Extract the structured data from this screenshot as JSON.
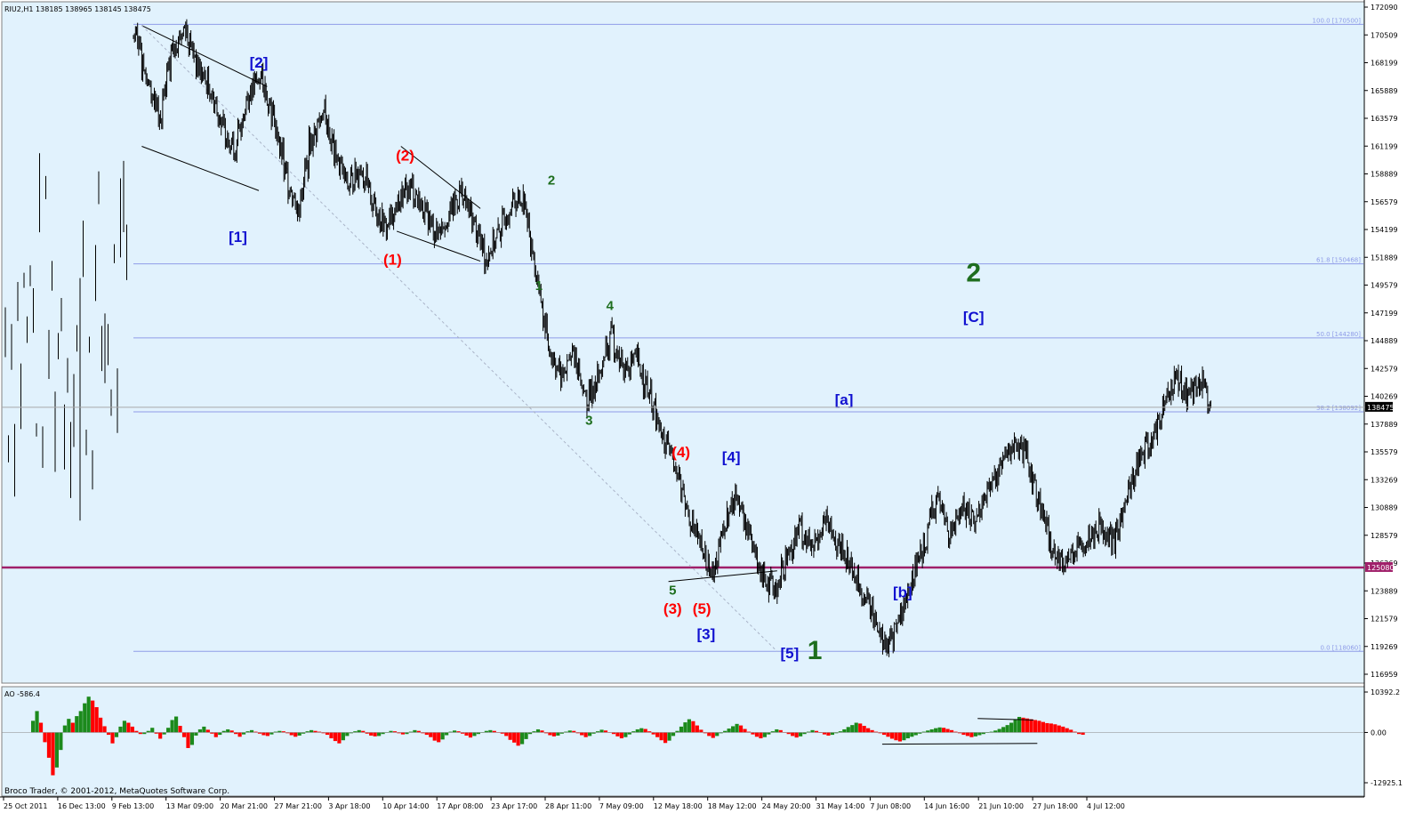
{
  "header": {
    "symbol_ohlc": "RIU2,H1  138185 138965 138145 138475",
    "osc_label": "AO -586.4",
    "copyright": "Broco Trader, © 2001-2012, MetaQuotes Software Corp."
  },
  "colors": {
    "background": "#e1f2fd",
    "grid": "#c0c0c0",
    "candle": "#000000",
    "fib_line": "#8f9ce8",
    "support_line": "#a0206a",
    "ao_up": "#1c8a1c",
    "ao_down": "#ff0000",
    "label_blue": "#1010d0",
    "label_red": "#ff0000",
    "label_green": "#1e6e1e",
    "price_box": "#000000"
  },
  "chart_data": [
    {
      "type": "candlestick",
      "symbol": "RIU2",
      "timeframe": "H1",
      "ylim": [
        116000,
        172090
      ],
      "y_ticks": [
        "172090",
        "170509",
        "168199",
        "165889",
        "163579",
        "161199",
        "158889",
        "156579",
        "154199",
        "151889",
        "149579",
        "147199",
        "144889",
        "142579",
        "140269",
        "137889",
        "135579",
        "133269",
        "130889",
        "128579",
        "126269",
        "123889",
        "121579",
        "119269",
        "116959"
      ],
      "x_ticks": [
        "25 Oct 2011",
        "16 Dec 13:00",
        "9 Feb 13:00",
        "13 Mar 09:00",
        "20 Mar 21:00",
        "27 Mar 21:00",
        "3 Apr 18:00",
        "10 Apr 14:00",
        "17 Apr 08:00",
        "23 Apr 17:00",
        "28 Apr 11:00",
        "7 May 09:00",
        "12 May 18:00",
        "18 May 12:00",
        "24 May 20:00",
        "31 May 14:00",
        "7 Jun 08:00",
        "14 Jun 16:00",
        "21 Jun 10:00",
        "27 Jun 18:00",
        "4 Jul 12:00"
      ],
      "path_points": [
        [
          0,
          169500
        ],
        [
          3,
          166000
        ],
        [
          6,
          162500
        ],
        [
          9,
          168500
        ],
        [
          12,
          170200
        ],
        [
          15,
          167000
        ],
        [
          18,
          165000
        ],
        [
          21,
          162000
        ],
        [
          24,
          160000
        ],
        [
          27,
          164500
        ],
        [
          30,
          166200
        ],
        [
          33,
          163000
        ],
        [
          36,
          158000
        ],
        [
          39,
          155000
        ],
        [
          42,
          160500
        ],
        [
          45,
          163200
        ],
        [
          48,
          159500
        ],
        [
          51,
          157000
        ],
        [
          54,
          158500
        ],
        [
          57,
          155500
        ],
        [
          60,
          153500
        ],
        [
          63,
          155500
        ],
        [
          66,
          157000
        ],
        [
          69,
          155000
        ],
        [
          72,
          153000
        ],
        [
          75,
          154500
        ],
        [
          78,
          156500
        ],
        [
          81,
          154000
        ],
        [
          84,
          151000
        ],
        [
          87,
          153000
        ],
        [
          90,
          155500
        ],
        [
          93,
          156000
        ],
        [
          96,
          149500
        ],
        [
          99,
          143500
        ],
        [
          102,
          141000
        ],
        [
          105,
          143000
        ],
        [
          108,
          139000
        ],
        [
          111,
          141000
        ],
        [
          114,
          144500
        ],
        [
          117,
          141500
        ],
        [
          120,
          142500
        ],
        [
          123,
          139500
        ],
        [
          126,
          136000
        ],
        [
          129,
          134000
        ],
        [
          132,
          130000
        ],
        [
          135,
          127000
        ],
        [
          138,
          124500
        ],
        [
          141,
          128500
        ],
        [
          144,
          131200
        ],
        [
          147,
          127500
        ],
        [
          150,
          124800
        ],
        [
          153,
          123000
        ],
        [
          156,
          126000
        ],
        [
          159,
          128500
        ],
        [
          162,
          126500
        ],
        [
          165,
          129000
        ],
        [
          168,
          127000
        ],
        [
          171,
          125500
        ],
        [
          174,
          123000
        ],
        [
          177,
          121000
        ],
        [
          180,
          118300
        ],
        [
          183,
          121000
        ],
        [
          186,
          124000
        ],
        [
          189,
          127500
        ],
        [
          192,
          130800
        ],
        [
          195,
          128000
        ],
        [
          198,
          130200
        ],
        [
          201,
          129000
        ],
        [
          204,
          131500
        ],
        [
          207,
          133500
        ],
        [
          210,
          135200
        ],
        [
          213,
          134500
        ],
        [
          216,
          131000
        ],
        [
          219,
          127000
        ],
        [
          222,
          125500
        ],
        [
          225,
          126500
        ],
        [
          228,
          127500
        ],
        [
          231,
          128800
        ],
        [
          234,
          127200
        ],
        [
          237,
          130500
        ],
        [
          240,
          134000
        ],
        [
          243,
          135500
        ],
        [
          246,
          138500
        ],
        [
          249,
          141000
        ],
        [
          252,
          139500
        ],
        [
          255,
          140500
        ],
        [
          257,
          138475
        ]
      ],
      "fib_levels": [
        {
          "label": "100.0 [170500]",
          "value": 170500
        },
        {
          "label": "61.8 [150468]",
          "value": 150468
        },
        {
          "label": "50.0 [144280]",
          "value": 144280
        },
        {
          "label": "38.2 [138092]",
          "value": 138092
        },
        {
          "label": "0.0 [118060]",
          "value": 118060
        }
      ],
      "support_level": {
        "value": 125080,
        "label": "125080"
      },
      "current_price": {
        "value": 138475,
        "label": "138475"
      },
      "wave_labels": [
        {
          "text": "[2]",
          "color": "blue",
          "bar": 30,
          "price": 166900,
          "size": "m"
        },
        {
          "text": "[1]",
          "color": "blue",
          "bar": 25,
          "price": 152300,
          "size": "m"
        },
        {
          "text": "(2)",
          "color": "red",
          "bar": 65,
          "price": 159100,
          "size": "m"
        },
        {
          "text": "(1)",
          "color": "red",
          "bar": 62,
          "price": 150400,
          "size": "m"
        },
        {
          "text": "2",
          "color": "green",
          "bar": 100,
          "price": 157100,
          "size": "s"
        },
        {
          "text": "1",
          "color": "green",
          "bar": 97,
          "price": 148300,
          "size": "s"
        },
        {
          "text": "4",
          "color": "green",
          "bar": 114,
          "price": 146600,
          "size": "s"
        },
        {
          "text": "3",
          "color": "green",
          "bar": 109,
          "price": 137000,
          "size": "s"
        },
        {
          "text": "(4)",
          "color": "red",
          "bar": 131,
          "price": 134300,
          "size": "m"
        },
        {
          "text": "[4]",
          "color": "blue",
          "bar": 143,
          "price": 133900,
          "size": "m"
        },
        {
          "text": "5",
          "color": "green",
          "bar": 129,
          "price": 122800,
          "size": "s"
        },
        {
          "text": "(3)",
          "color": "red",
          "bar": 129,
          "price": 121200,
          "size": "m"
        },
        {
          "text": "(5)",
          "color": "red",
          "bar": 136,
          "price": 121200,
          "size": "m"
        },
        {
          "text": "[3]",
          "color": "blue",
          "bar": 137,
          "price": 119100,
          "size": "m"
        },
        {
          "text": "[5]",
          "color": "blue",
          "bar": 157,
          "price": 117500,
          "size": "m"
        },
        {
          "text": "1",
          "color": "green",
          "bar": 163,
          "price": 117400,
          "size": "xl"
        },
        {
          "text": "[a]",
          "color": "blue",
          "bar": 170,
          "price": 138700,
          "size": "m"
        },
        {
          "text": "[b]",
          "color": "blue",
          "bar": 184,
          "price": 122600,
          "size": "m"
        },
        {
          "text": "2",
          "color": "green",
          "bar": 201,
          "price": 149000,
          "size": "xl"
        },
        {
          "text": "[C]",
          "color": "blue",
          "bar": 201,
          "price": 145600,
          "size": "m"
        }
      ]
    },
    {
      "type": "bar",
      "name": "AO",
      "ylim": [
        -12925.1,
        10392.2
      ],
      "y_ticks": [
        "10392.2",
        "0.00",
        "-12925.1"
      ],
      "values": [
        3000,
        5500,
        2500,
        -2500,
        -6500,
        -11000,
        -9000,
        -4500,
        1800,
        3500,
        2500,
        4200,
        5500,
        7500,
        9200,
        8200,
        6500,
        3800,
        1600,
        -600,
        -2800,
        -1200,
        1500,
        3000,
        2500,
        1500,
        400,
        -400,
        -400,
        400,
        1200,
        -300,
        -1600,
        -500,
        1200,
        3200,
        4100,
        1700,
        -1200,
        -4000,
        -3200,
        -800,
        800,
        1500,
        700,
        -300,
        -1200,
        -600,
        400,
        800,
        500,
        -400,
        -1100,
        -500,
        300,
        600,
        200,
        -300,
        -700,
        -900,
        -500,
        200,
        400,
        300,
        -200,
        -700,
        -1100,
        -800,
        -300,
        300,
        600,
        400,
        200,
        -200,
        -600,
        -1500,
        -2200,
        -2800,
        -2000,
        -900,
        -200,
        300,
        600,
        400,
        -300,
        -800,
        -1000,
        -900,
        -400,
        100,
        400,
        300,
        -200,
        -500,
        -400,
        200,
        600,
        400,
        -200,
        -600,
        -1200,
        -2100,
        -2500,
        -1800,
        -700,
        200,
        500,
        300,
        -300,
        -800,
        -1300,
        -900,
        -400,
        100,
        400,
        600,
        400,
        100,
        -300,
        -900,
        -1900,
        -2600,
        -3400,
        -3000,
        -1700,
        -400,
        300,
        800,
        500,
        -200,
        -700,
        -1000,
        -800,
        -300,
        200,
        500,
        400,
        -200,
        -700,
        -1200,
        -900,
        -300,
        300,
        700,
        500,
        100,
        -400,
        -1000,
        -1500,
        -1200,
        -500,
        300,
        800,
        1100,
        900,
        300,
        -500,
        -1200,
        -2000,
        -2700,
        -2100,
        -900,
        400,
        1500,
        2600,
        3400,
        2900,
        1800,
        700,
        -200,
        -900,
        -1400,
        -900,
        -200,
        400,
        1000,
        1600,
        2200,
        1800,
        900,
        200,
        -500,
        -1100,
        -1500,
        -1200,
        -500,
        300,
        800,
        600,
        100,
        -400,
        -900,
        -1300,
        -1000,
        -400,
        200,
        600,
        400,
        -100,
        -500,
        -800,
        -600,
        -200,
        300,
        800,
        1400,
        1900,
        2500,
        2300,
        1700,
        1100,
        600,
        200,
        -200,
        -600,
        -1100,
        -1600,
        -2000,
        -2300,
        -2000,
        -1500,
        -1100,
        -700,
        -300,
        200,
        500,
        800,
        1100,
        1300,
        1200,
        900,
        600,
        200,
        -200,
        -600,
        -900,
        -1200,
        -1000,
        -700,
        -400,
        -100,
        200,
        500,
        900,
        1400,
        1900,
        2500,
        3300,
        4000,
        3800,
        3600,
        3400,
        3200,
        3000,
        2700,
        2400,
        2300,
        2100,
        1800,
        1500,
        1100,
        700,
        200,
        -400,
        -586.4
      ]
    }
  ]
}
